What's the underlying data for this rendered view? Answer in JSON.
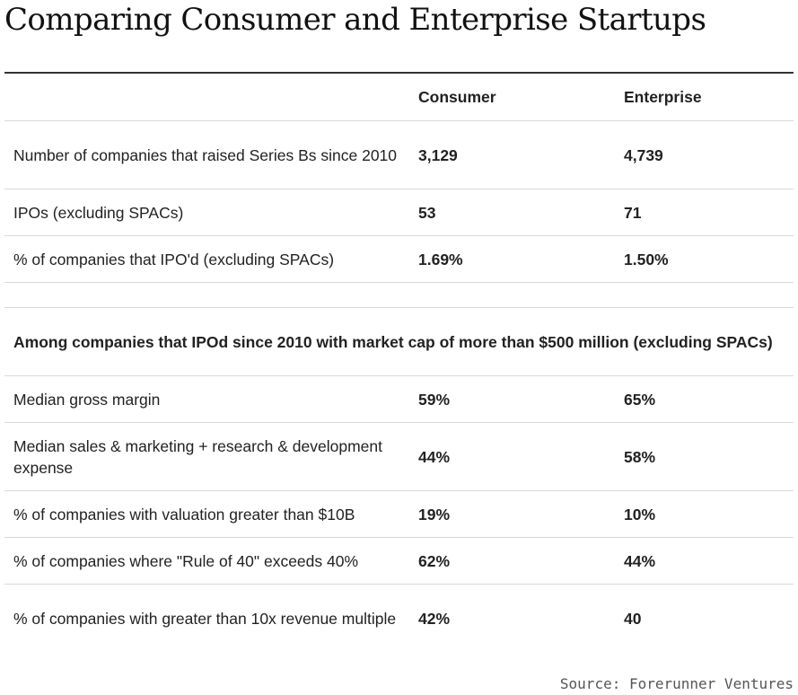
{
  "title": "Comparing Consumer and Enterprise Startups",
  "columns": {
    "consumer": "Consumer",
    "enterprise": "Enterprise"
  },
  "rows_top": [
    {
      "label": "Number of companies that raised Series Bs since 2010",
      "consumer": "3,129",
      "enterprise": "4,739"
    },
    {
      "label": "IPOs (excluding SPACs)",
      "consumer": "53",
      "enterprise": "71"
    },
    {
      "label": "% of companies that IPO'd (excluding SPACs)",
      "consumer": "1.69%",
      "enterprise": "1.50%"
    }
  ],
  "section_label": "Among companies that IPOd since 2010 with market cap of more than $500 million (excluding SPACs)",
  "rows_bottom": [
    {
      "label": "Median gross margin",
      "consumer": "59%",
      "enterprise": "65%"
    },
    {
      "label": "Median sales & marketing + research & development expense",
      "consumer": "44%",
      "enterprise": "58%"
    },
    {
      "label": "% of companies with valuation greater than $10B",
      "consumer": "19%",
      "enterprise": "10%"
    },
    {
      "label": "% of companies where \"Rule of 40\" exceeds 40%",
      "consumer": "62%",
      "enterprise": "44%"
    },
    {
      "label": "% of companies with greater than 10x revenue multiple",
      "consumer": "42%",
      "enterprise": "40"
    }
  ],
  "source": "Source: Forerunner Ventures"
}
